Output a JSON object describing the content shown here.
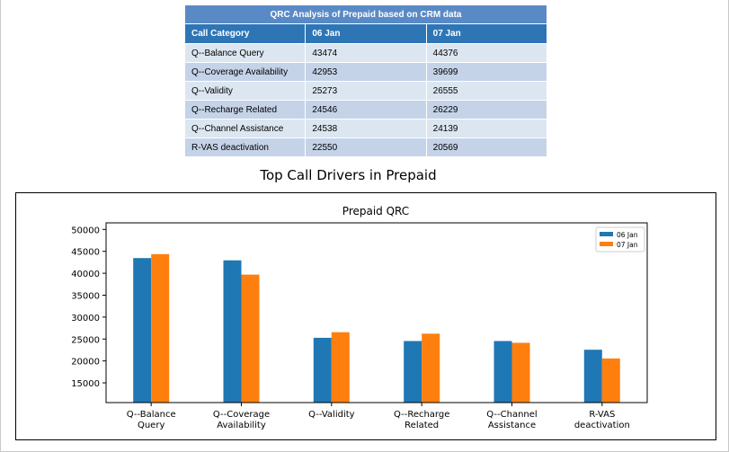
{
  "table": {
    "title": "QRC Analysis of Prepaid based on CRM data",
    "headers": [
      "Call Category",
      "06 Jan",
      "07 Jan"
    ],
    "rows": [
      [
        "Q--Balance Query",
        "43474",
        "44376"
      ],
      [
        "Q--Coverage Availability",
        "42953",
        "39699"
      ],
      [
        "Q--Validity",
        "25273",
        "26555"
      ],
      [
        "Q--Recharge Related",
        "24546",
        "26229"
      ],
      [
        "Q--Channel Assistance",
        "24538",
        "24139"
      ],
      [
        "R-VAS deactivation",
        "22550",
        "20569"
      ]
    ]
  },
  "caption": "Top Call Drivers in Prepaid",
  "chart_data": {
    "type": "bar",
    "title": "Prepaid QRC",
    "categories": [
      [
        "Q--Balance",
        "Query"
      ],
      [
        "Q--Coverage",
        "Availability"
      ],
      [
        "Q--Validity"
      ],
      [
        "Q--Recharge",
        "Related"
      ],
      [
        "Q--Channel",
        "Assistance"
      ],
      [
        "R-VAS",
        "deactivation"
      ]
    ],
    "series": [
      {
        "name": "06 Jan",
        "color": "#1f77b4",
        "values": [
          43474,
          42953,
          25273,
          24546,
          24538,
          22550
        ]
      },
      {
        "name": "07 Jan",
        "color": "#ff7f0e",
        "values": [
          44376,
          39699,
          26555,
          26229,
          24139,
          20569
        ]
      }
    ],
    "ylim": [
      10500,
      51500
    ],
    "yticks": [
      15000,
      20000,
      25000,
      30000,
      35000,
      40000,
      45000,
      50000
    ],
    "xlabel": "",
    "ylabel": "",
    "legend": "top-right",
    "grid": false
  }
}
